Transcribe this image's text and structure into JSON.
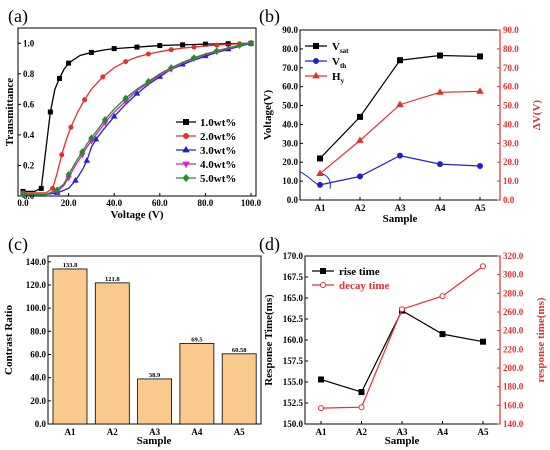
{
  "chart_data": [
    {
      "panel": "(a)",
      "type": "line",
      "xlabel": "Voltage (V)",
      "ylabel": "Transmittance",
      "xlim": [
        0,
        100
      ],
      "ylim": [
        0,
        1.1
      ],
      "xticks": [
        "0.0",
        "20.0",
        "40.0",
        "60.0",
        "80.0",
        "100.0"
      ],
      "yticks": [
        "0.0",
        "0.2",
        "0.4",
        "0.6",
        "0.8",
        "1.0"
      ],
      "legend_position": "right",
      "series": [
        {
          "name": "1.0wt%",
          "color": "#000000",
          "marker": "square",
          "x": [
            0,
            5,
            8,
            10,
            12,
            14,
            16,
            18,
            20,
            25,
            30,
            35,
            40,
            45,
            50,
            55,
            60,
            65,
            70,
            75,
            80,
            85,
            90,
            95,
            100
          ],
          "y": [
            0.03,
            0.03,
            0.05,
            0.3,
            0.55,
            0.7,
            0.77,
            0.83,
            0.87,
            0.92,
            0.94,
            0.955,
            0.965,
            0.97,
            0.975,
            0.98,
            0.985,
            0.988,
            0.99,
            0.992,
            0.994,
            0.996,
            0.997,
            0.998,
            1.0
          ]
        },
        {
          "name": "2.0wt%",
          "color": "#e03030",
          "marker": "circle",
          "x": [
            0,
            10,
            13,
            15,
            17,
            19,
            21,
            24,
            27,
            30,
            35,
            40,
            45,
            50,
            55,
            60,
            65,
            70,
            75,
            80,
            85,
            90,
            95,
            100
          ],
          "y": [
            0.02,
            0.02,
            0.05,
            0.15,
            0.27,
            0.37,
            0.45,
            0.55,
            0.63,
            0.7,
            0.78,
            0.84,
            0.88,
            0.91,
            0.93,
            0.945,
            0.958,
            0.968,
            0.975,
            0.982,
            0.988,
            0.993,
            0.997,
            1.0
          ]
        },
        {
          "name": "3.0wt%",
          "color": "#2020d0",
          "marker": "triangle",
          "x": [
            0,
            10,
            15,
            20,
            23,
            26,
            28,
            30,
            32,
            35,
            40,
            45,
            50,
            55,
            60,
            65,
            70,
            75,
            80,
            85,
            90,
            95,
            100
          ],
          "y": [
            0.01,
            0.01,
            0.02,
            0.05,
            0.1,
            0.17,
            0.23,
            0.32,
            0.37,
            0.43,
            0.52,
            0.6,
            0.67,
            0.73,
            0.78,
            0.83,
            0.86,
            0.89,
            0.915,
            0.94,
            0.96,
            0.98,
            1.0
          ]
        },
        {
          "name": "4.0wt%",
          "color": "#d020d0",
          "marker": "triangle-down",
          "x": [
            0,
            10,
            15,
            18,
            20,
            23,
            26,
            28,
            30,
            33,
            36,
            40,
            45,
            50,
            55,
            60,
            65,
            70,
            75,
            80,
            85,
            90,
            95,
            100
          ],
          "y": [
            0.01,
            0.01,
            0.03,
            0.07,
            0.12,
            0.2,
            0.27,
            0.32,
            0.36,
            0.42,
            0.48,
            0.55,
            0.62,
            0.69,
            0.74,
            0.79,
            0.83,
            0.87,
            0.9,
            0.925,
            0.945,
            0.965,
            0.985,
            1.0
          ]
        },
        {
          "name": "5.0wt%",
          "color": "#2a8a2a",
          "marker": "diamond",
          "x": [
            0,
            10,
            15,
            18,
            20,
            23,
            26,
            28,
            30,
            33,
            36,
            40,
            45,
            50,
            55,
            60,
            65,
            70,
            75,
            80,
            85,
            90,
            95,
            100
          ],
          "y": [
            0.01,
            0.01,
            0.04,
            0.08,
            0.14,
            0.22,
            0.29,
            0.34,
            0.38,
            0.44,
            0.5,
            0.57,
            0.64,
            0.7,
            0.75,
            0.8,
            0.84,
            0.875,
            0.905,
            0.93,
            0.95,
            0.97,
            0.988,
            1.0
          ]
        }
      ]
    },
    {
      "panel": "(b)",
      "type": "line",
      "categories": [
        "A1",
        "A2",
        "A3",
        "A4",
        "A5"
      ],
      "xlabel": "Sample",
      "ylabel_left": "Voltage(V)",
      "ylabel_right": "ΔV(V)",
      "ylim_left": [
        0,
        90
      ],
      "ylim_right": [
        0,
        90
      ],
      "yticks": [
        "0.0",
        "10.0",
        "20.0",
        "30.0",
        "40.0",
        "50.0",
        "60.0",
        "70.0",
        "80.0",
        "90.0"
      ],
      "legend_position": "top-left",
      "right_axis_color": "#e03030",
      "series": [
        {
          "name": "V",
          "subscript": "sat",
          "color": "#000000",
          "marker": "square",
          "axis": "left",
          "values": [
            22,
            44,
            74,
            76.5,
            76
          ]
        },
        {
          "name": "V",
          "subscript": "th",
          "color": "#2020d0",
          "marker": "circle",
          "axis": "left",
          "values": [
            8,
            12.5,
            23.5,
            19,
            18
          ]
        },
        {
          "name": "H",
          "subscript": "y",
          "color": "#e03030",
          "marker": "triangle",
          "axis": "right",
          "values": [
            14,
            31.5,
            50.5,
            57,
            57.5
          ]
        }
      ]
    },
    {
      "panel": "(c)",
      "type": "bar",
      "categories": [
        "A1",
        "A2",
        "A3",
        "A4",
        "A5"
      ],
      "values": [
        133.8,
        121.8,
        38.9,
        69.5,
        60.58
      ],
      "data_labels": [
        "133.8",
        "121.8",
        "38.9",
        "69.5",
        "60.58"
      ],
      "xlabel": "Sample",
      "ylabel": "Contrast Ratio",
      "ylim": [
        0,
        145
      ],
      "yticks": [
        "0.0",
        "20.0",
        "40.0",
        "60.0",
        "80.0",
        "100.0",
        "120.0",
        "140.0"
      ],
      "bar_color": "#f9c98e"
    },
    {
      "panel": "(d)",
      "type": "line",
      "categories": [
        "A1",
        "A2",
        "A3",
        "A4",
        "A5"
      ],
      "xlabel": "Sample",
      "ylabel_left": "Response Time(ms)",
      "ylabel_right": "response time(ms)",
      "ylim_left": [
        150,
        170
      ],
      "ylim_right": [
        140,
        320
      ],
      "yticks_left": [
        "150.0",
        "152.5",
        "155.0",
        "157.5",
        "160.0",
        "162.5",
        "165.0",
        "167.5",
        "170.0"
      ],
      "yticks_right": [
        "140.0",
        "160.0",
        "180.0",
        "200.0",
        "220.0",
        "240.0",
        "260.0",
        "280.0",
        "300.0",
        "320.0"
      ],
      "legend_position": "top-left",
      "right_axis_color": "#e03030",
      "series": [
        {
          "name": "rise time",
          "color": "#000000",
          "marker": "square",
          "axis": "left",
          "values": [
            155.3,
            153.8,
            163.5,
            160.7,
            159.8
          ]
        },
        {
          "name": "decay time",
          "color": "#e03030",
          "marker": "circle",
          "axis": "right",
          "values": [
            157,
            158,
            263,
            277,
            309
          ]
        }
      ]
    }
  ]
}
